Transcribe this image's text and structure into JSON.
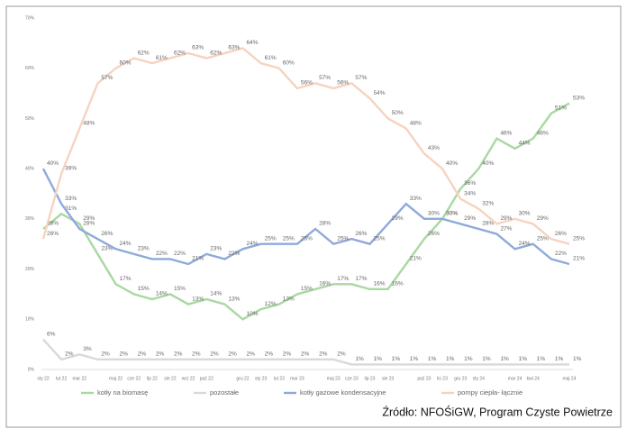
{
  "chart_data": {
    "type": "line",
    "categories": [
      "sty 22",
      "lut 22",
      "mar 22",
      null,
      "maj 22",
      "cze 22",
      "lip 22",
      "sie 22",
      "wrz 22",
      "paź 22",
      null,
      "gru 22",
      "sty 23",
      "lut 23",
      "mar 23",
      null,
      "maj 23",
      "cze 23",
      "lip 23",
      "sie 23",
      null,
      "paź 23",
      "lis 23",
      "gru 23",
      "sty 24",
      null,
      "mar 24",
      "kwi 24",
      null,
      "maj 24"
    ],
    "series": [
      {
        "name": "kotły na biomasę",
        "color": "#a9d8a2",
        "values": [
          28,
          31,
          29,
          23,
          17,
          15,
          14,
          15,
          13,
          14,
          13,
          10,
          12,
          13,
          15,
          16,
          17,
          17,
          16,
          16,
          21,
          26,
          30,
          36,
          40,
          46,
          44,
          46,
          51,
          53
        ],
        "value_labels": [
          "28%",
          "31%",
          "29%",
          "23%",
          "17%",
          "15%",
          "14%",
          "15%",
          "13%",
          "14%",
          "13%",
          "10%",
          "12%",
          "13%",
          "15%",
          "16%",
          "17%",
          "17%",
          "16%",
          "16%",
          "21%",
          "26%",
          "30%",
          "36%",
          "40%",
          "46%",
          "44%",
          "46%",
          "51%",
          "53%"
        ]
      },
      {
        "name": "pozostałe",
        "color": "#d9d9d9",
        "values": [
          6,
          2,
          3,
          2,
          2,
          2,
          2,
          2,
          2,
          2,
          2,
          2,
          2,
          2,
          2,
          2,
          2,
          1,
          1,
          1,
          1,
          1,
          1,
          1,
          1,
          1,
          1,
          1,
          1,
          1
        ],
        "value_labels": [
          "6%",
          "2%",
          "3%",
          "2%",
          "2%",
          "2%",
          "2%",
          "2%",
          "2%",
          "2%",
          "2%",
          "2%",
          "2%",
          "2%",
          "2%",
          "2%",
          "2%",
          "1%",
          "1%",
          "1%",
          "1%",
          "1%",
          "1%",
          "1%",
          "1%",
          "1%",
          "1%",
          "1%",
          "1%",
          "1%"
        ]
      },
      {
        "name": "kotły gazowe kondensacyjne",
        "color": "#8eaadb",
        "values": [
          40,
          33,
          28,
          26,
          24,
          23,
          22,
          22,
          21,
          23,
          22,
          24,
          25,
          25,
          25,
          28,
          25,
          26,
          25,
          29,
          33,
          30,
          30,
          29,
          28,
          27,
          24,
          25,
          22,
          21
        ],
        "value_labels": [
          "40%",
          "33%",
          "28%",
          "26%",
          "24%",
          "23%",
          "22%",
          "22%",
          "21%",
          "23%",
          "22%",
          "24%",
          "25%",
          "25%",
          "25%",
          "28%",
          "25%",
          "26%",
          "25%",
          "29%",
          "33%",
          "30%",
          "30%",
          "29%",
          "28%",
          "27%",
          "24%",
          "25%",
          "22%",
          "21%"
        ]
      },
      {
        "name": "pompy ciepła- łącznie",
        "color": "#f6d3c0",
        "values": [
          26,
          39,
          48,
          57,
          60,
          62,
          61,
          62,
          63,
          62,
          63,
          64,
          61,
          60,
          56,
          57,
          56,
          57,
          54,
          50,
          48,
          43,
          40,
          34,
          32,
          29,
          30,
          29,
          26,
          25
        ],
        "value_labels": [
          "26%",
          "39%",
          "48%",
          "57%",
          "60%",
          "62%",
          "61%",
          "62%",
          "63%",
          "62%",
          "63%",
          "64%",
          "61%",
          "60%",
          "56%",
          "57%",
          "56%",
          "57%",
          "54%",
          "50%",
          "48%",
          "43%",
          "40%",
          "34%",
          "32%",
          "29%",
          "30%",
          "29%",
          "26%",
          "25%"
        ]
      }
    ],
    "ylim": [
      0,
      70
    ],
    "yticks": [
      {
        "value": 0,
        "label": "0%"
      },
      {
        "value": 10,
        "label": "10%"
      },
      {
        "value": 20,
        "label": "20%"
      },
      {
        "value": 30,
        "label": "30%"
      },
      {
        "value": 40,
        "label": "40%"
      },
      {
        "value": 50,
        "label": "50%"
      },
      {
        "value": 60,
        "label": "60%"
      },
      {
        "value": 70,
        "label": "70%"
      }
    ],
    "source": "Źródło: NFOŚiGW, Program Czyste Powietrze"
  }
}
